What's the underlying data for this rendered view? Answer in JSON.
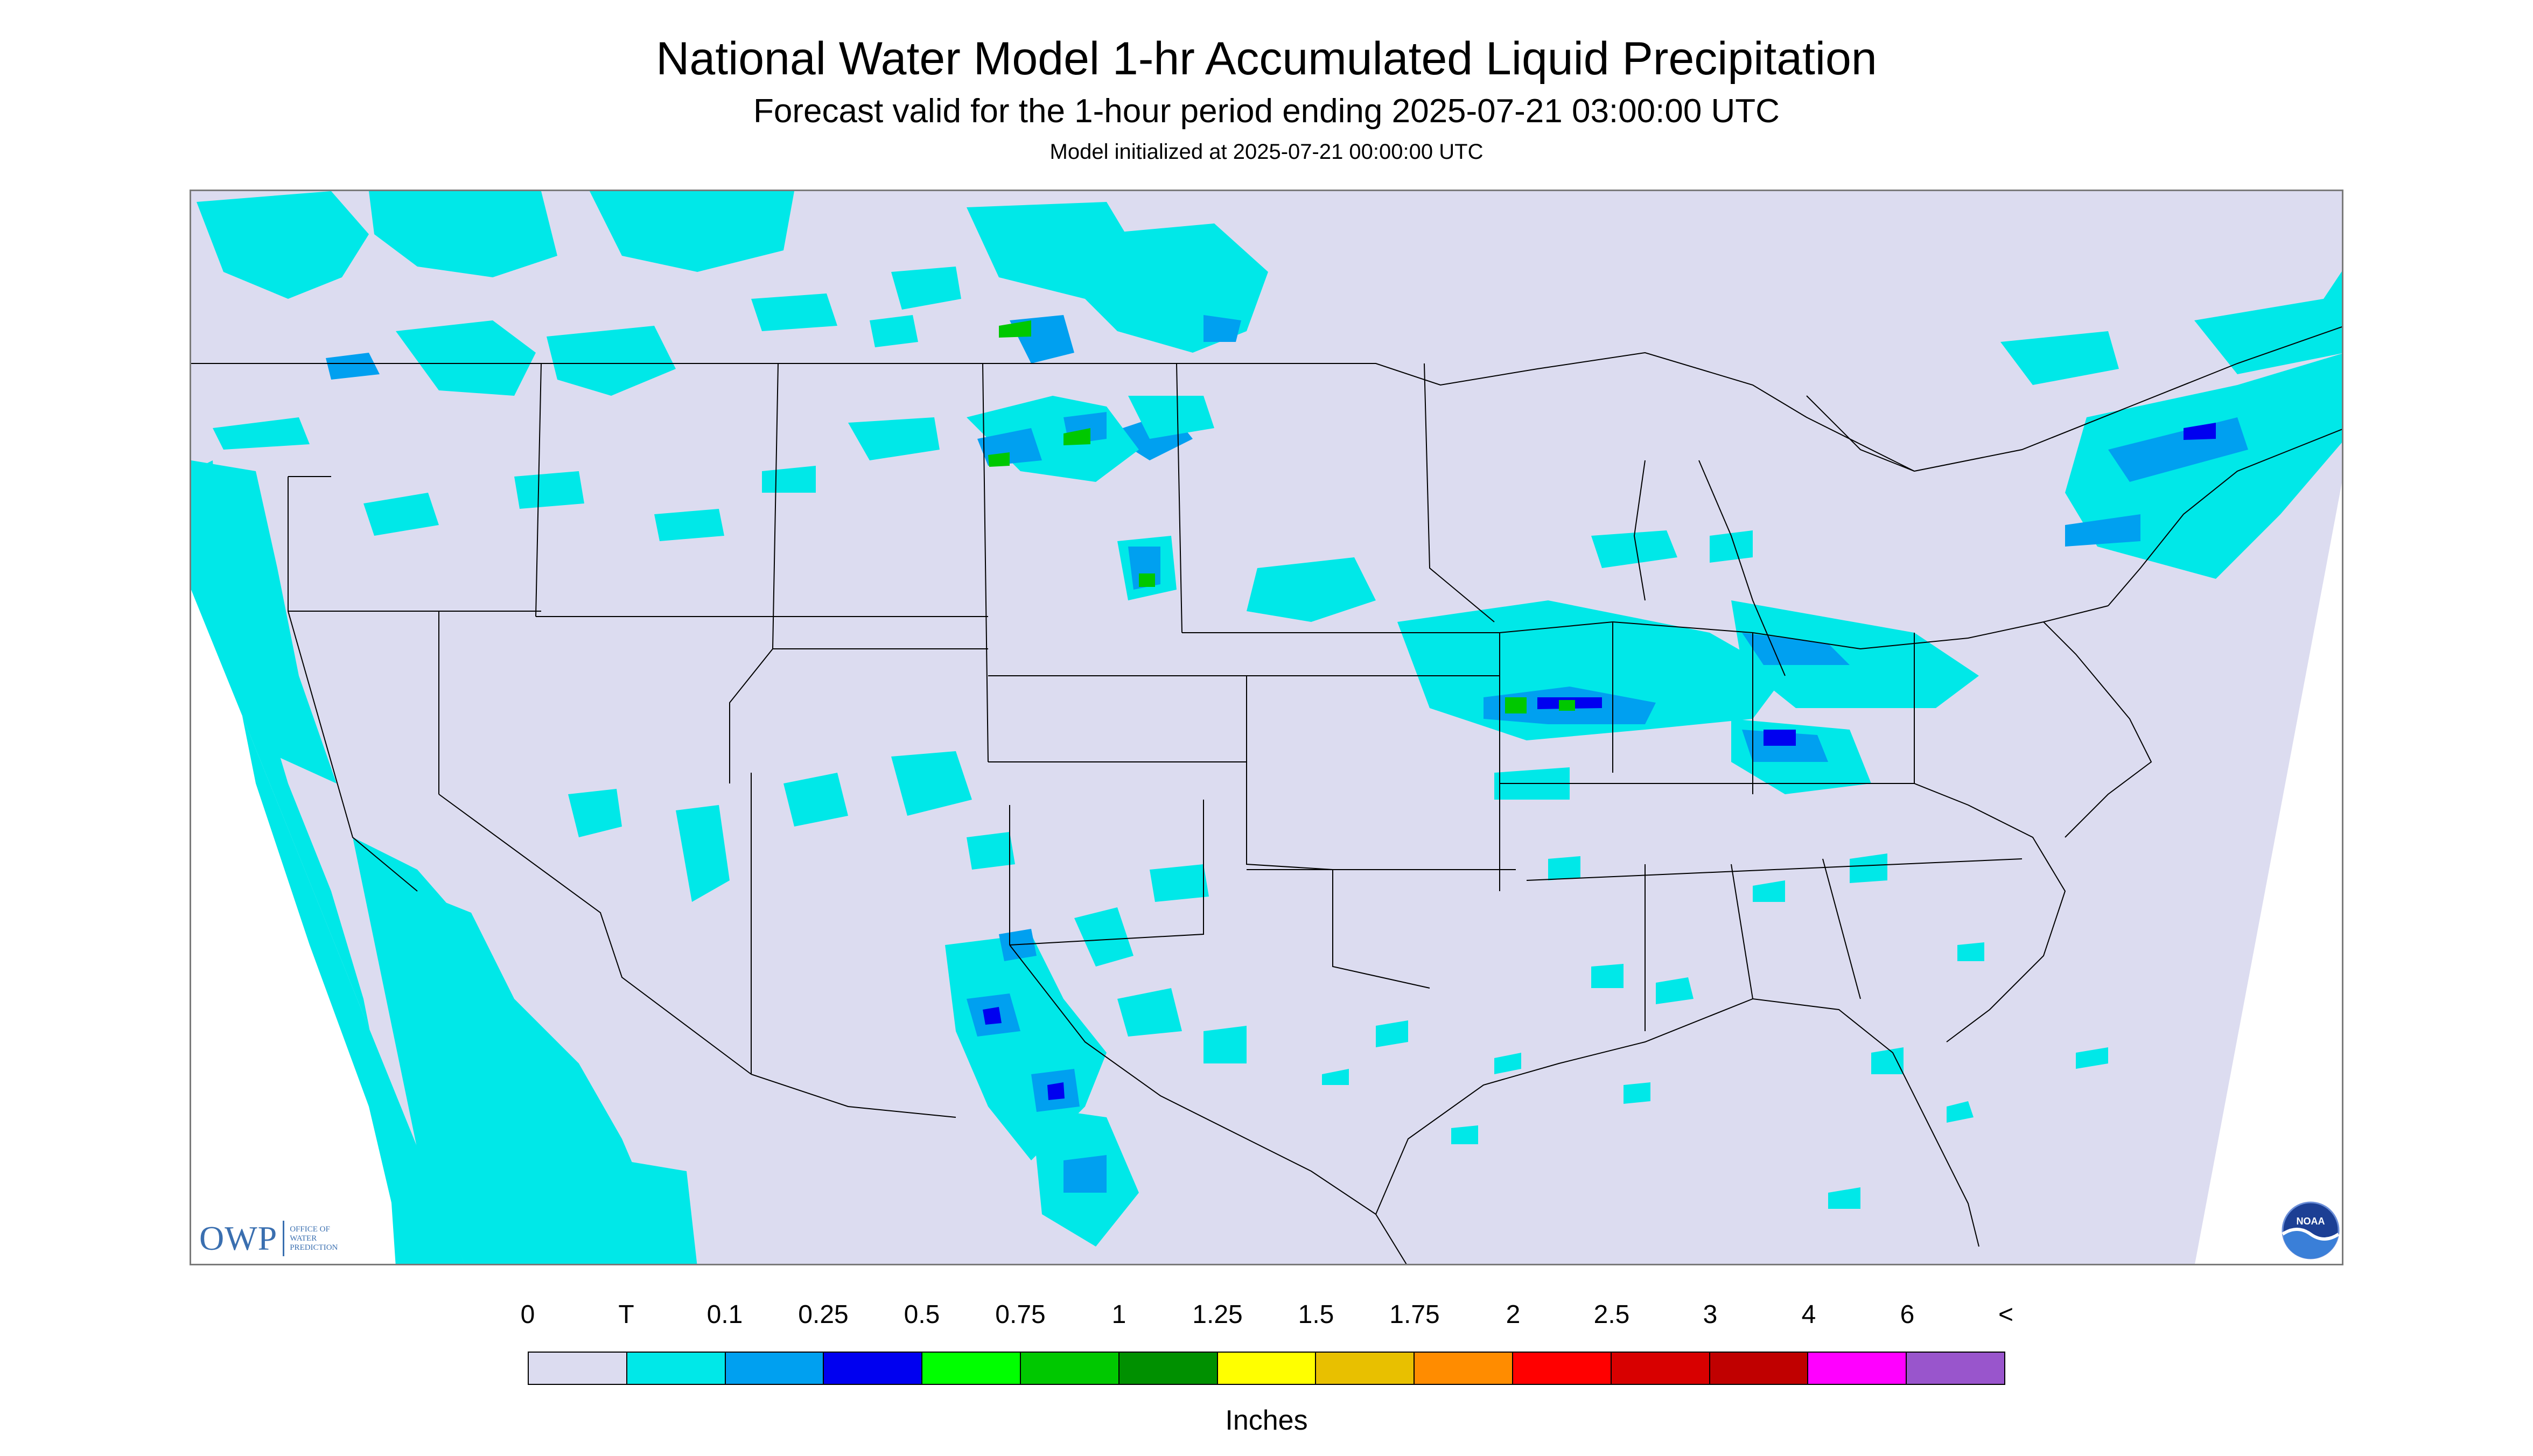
{
  "title": "National Water Model 1-hr Accumulated Liquid Precipitation",
  "subtitle": "Forecast valid for the 1-hour period ending 2025-07-21 03:00:00 UTC",
  "init_line": "Model initialized at 2025-07-21 00:00:00 UTC",
  "logo": {
    "owp_text": "OWP",
    "owp_subtext": "OFFICE OF\nWATER\nPREDICTION",
    "noaa_text": "NOAA"
  },
  "legend": {
    "labels": [
      "0",
      "T",
      "0.1",
      "0.25",
      "0.5",
      "0.75",
      "1",
      "1.25",
      "1.5",
      "1.75",
      "2",
      "2.5",
      "3",
      "4",
      "6",
      "<"
    ],
    "colors": [
      "#dcdcf0",
      "#00e8e8",
      "#00a0f0",
      "#0000f0",
      "#00ff00",
      "#00c800",
      "#009000",
      "#ffff00",
      "#e8c000",
      "#ff8c00",
      "#ff0000",
      "#d80000",
      "#c00000",
      "#ff00ff",
      "#9955cc"
    ],
    "units": "Inches"
  },
  "colors": {
    "map_background": "#dcdcf0",
    "light_precip": "#00e8e8",
    "medium_precip": "#00a0f0",
    "heavy_precip": "#0000f0",
    "green_precip": "#00c800",
    "yellow_precip": "#ffff00",
    "boundaries": "#000000"
  }
}
